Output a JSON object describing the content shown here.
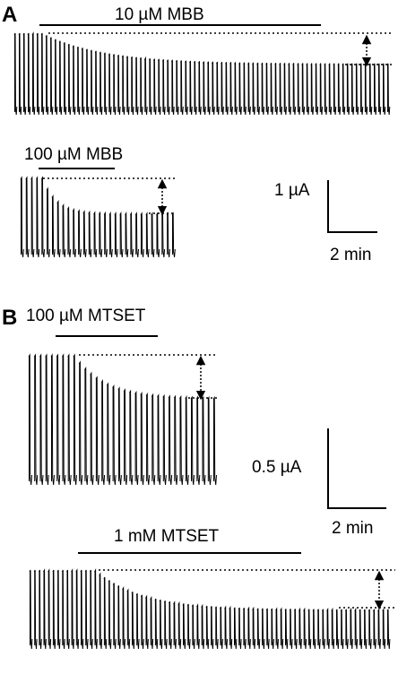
{
  "panels": [
    {
      "letter": "A",
      "recordings": [
        {
          "label": "10 µM MBB"
        },
        {
          "label": "100 µM MBB"
        }
      ],
      "scale_bar": {
        "y_label": "1 µA",
        "x_label": "2 min"
      }
    },
    {
      "letter": "B",
      "recordings": [
        {
          "label": "100 µM MTSET"
        },
        {
          "label": "1 mM MTSET"
        }
      ],
      "scale_bar": {
        "y_label": "0.5 µA",
        "x_label": "2 min"
      }
    }
  ],
  "colors": {
    "ink": "#000000",
    "background": "#ffffff"
  }
}
